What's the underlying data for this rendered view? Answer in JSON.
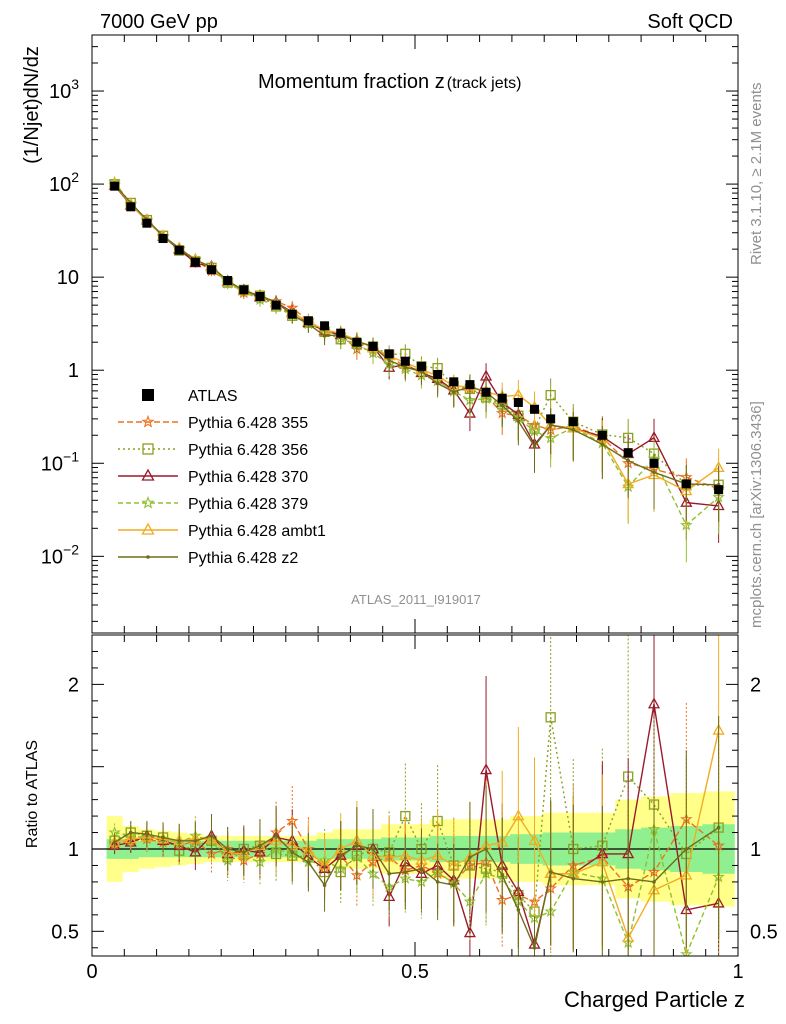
{
  "header": {
    "left": "7000 GeV pp",
    "right": "Soft QCD"
  },
  "side_labels": {
    "upper": "Rivet 3.1.10, ≥ 2.1M events",
    "lower": "mcplots.cern.ch [arXiv:1306.3436]"
  },
  "chart_data": {
    "type": "line",
    "title_main": "Momentum fraction z",
    "title_sub": "(track jets)",
    "analysis_id": "ATLAS_2011_I919017",
    "ylabel_main": "(1/Njet)dN/dz",
    "ylabel_ratio": "Ratio to ATLAS",
    "xlabel": "Charged Particle z",
    "x_range": [
      0,
      1
    ],
    "y_main_range": [
      0.0015,
      4000
    ],
    "y_main_scale": "log",
    "y_ratio_range": [
      0.35,
      2.3
    ],
    "x_ticks": [
      "0",
      "0.5",
      "1"
    ],
    "y_main_ticks": [
      {
        "value": 1000,
        "base": "10",
        "exp": "3"
      },
      {
        "value": 100,
        "base": "10",
        "exp": "2"
      },
      {
        "value": 10,
        "base": "10",
        "exp": ""
      },
      {
        "value": 1,
        "base": "1",
        "exp": ""
      },
      {
        "value": 0.1,
        "base": "10",
        "exp": "−1"
      },
      {
        "value": 0.01,
        "base": "10",
        "exp": "−2"
      }
    ],
    "y_ratio_ticks": [
      "0.5",
      "1",
      "2"
    ],
    "legend_position": "left-middle",
    "x": [
      0.035,
      0.06,
      0.085,
      0.11,
      0.135,
      0.16,
      0.185,
      0.21,
      0.235,
      0.26,
      0.285,
      0.31,
      0.335,
      0.36,
      0.385,
      0.41,
      0.435,
      0.46,
      0.485,
      0.51,
      0.535,
      0.56,
      0.585,
      0.61,
      0.635,
      0.66,
      0.685,
      0.71,
      0.745,
      0.79,
      0.83,
      0.87,
      0.92,
      0.97
    ],
    "data": {
      "name": "ATLAS",
      "color": "#000000",
      "values": [
        95,
        57,
        38,
        26,
        19.5,
        14.5,
        12,
        9.2,
        7.3,
        6.2,
        5.0,
        4.0,
        3.4,
        3.0,
        2.5,
        2.0,
        1.8,
        1.5,
        1.25,
        1.1,
        0.9,
        0.75,
        0.7,
        0.58,
        0.5,
        0.45,
        0.38,
        0.3,
        0.28,
        0.2,
        0.13,
        0.1,
        0.06,
        0.052
      ],
      "band_inner": [
        0.06,
        0.06,
        0.05,
        0.05,
        0.05,
        0.05,
        0.05,
        0.05,
        0.05,
        0.05,
        0.05,
        0.05,
        0.05,
        0.06,
        0.06,
        0.06,
        0.06,
        0.07,
        0.07,
        0.07,
        0.08,
        0.08,
        0.08,
        0.08,
        0.08,
        0.09,
        0.09,
        0.1,
        0.1,
        0.1,
        0.12,
        0.13,
        0.14,
        0.15
      ],
      "band_outer": [
        0.2,
        0.14,
        0.12,
        0.11,
        0.1,
        0.09,
        0.08,
        0.08,
        0.08,
        0.08,
        0.08,
        0.08,
        0.08,
        0.1,
        0.12,
        0.12,
        0.12,
        0.15,
        0.15,
        0.15,
        0.18,
        0.18,
        0.18,
        0.18,
        0.18,
        0.2,
        0.2,
        0.22,
        0.22,
        0.22,
        0.3,
        0.32,
        0.34,
        0.35
      ]
    },
    "series": [
      {
        "name": "Pythia 6.428 355",
        "color": "#ee7020",
        "dash": "6,3",
        "marker": "star",
        "ratio": [
          1.03,
          1.05,
          1.06,
          1.04,
          1.02,
          1.05,
          0.97,
          1.0,
          0.93,
          0.97,
          1.1,
          1.17,
          1.0,
          0.88,
          0.96,
          0.84,
          0.92,
          0.95,
          0.87,
          0.9,
          0.85,
          0.8,
          0.9,
          0.92,
          0.69,
          0.72,
          0.68,
          0.76,
          0.9,
          0.95,
          0.77,
          0.86,
          1.18,
          1.02
        ]
      },
      {
        "name": "Pythia 6.428 356",
        "color": "#8aa020",
        "dash": "2,3",
        "marker": "square",
        "ratio": [
          1.05,
          1.1,
          1.08,
          1.07,
          0.99,
          1.02,
          1.05,
          0.95,
          1.0,
          1.02,
          0.97,
          0.96,
          0.95,
          0.86,
          0.86,
          0.96,
          1.0,
          0.98,
          1.2,
          1.0,
          1.17,
          0.9,
          0.9,
          0.88,
          0.86,
          0.72,
          0.62,
          1.8,
          1.0,
          1.02,
          1.44,
          1.27,
          0.97,
          1.13
        ]
      },
      {
        "name": "Pythia 6.428 370",
        "color": "#9a1a2a",
        "dash": "",
        "marker": "triangle",
        "ratio": [
          1.02,
          1.04,
          1.08,
          1.05,
          1.02,
          0.98,
          1.08,
          0.97,
          0.99,
          0.98,
          1.07,
          1.05,
          0.95,
          0.88,
          0.96,
          1.02,
          1.0,
          0.71,
          0.92,
          0.85,
          0.9,
          0.81,
          0.49,
          1.48,
          0.9,
          0.74,
          0.42,
          0.85,
          0.85,
          0.97,
          0.97,
          1.88,
          0.63,
          0.67
        ]
      },
      {
        "name": "Pythia 6.428 379",
        "color": "#90c030",
        "dash": "5,3",
        "marker": "star",
        "ratio": [
          1.1,
          1.08,
          1.07,
          1.06,
          1.04,
          1.08,
          1.05,
          0.93,
          0.96,
          0.92,
          1.0,
          0.97,
          0.92,
          0.93,
          0.88,
          0.95,
          0.85,
          0.77,
          0.82,
          0.8,
          0.86,
          0.79,
          0.68,
          0.85,
          0.82,
          0.68,
          0.58,
          0.62,
          0.86,
          0.82,
          0.43,
          1.12,
          0.36,
          0.83
        ]
      },
      {
        "name": "Pythia 6.428 ambt1",
        "color": "#f2ac22",
        "dash": "",
        "marker": "triangle",
        "ratio": [
          1.04,
          1.06,
          1.07,
          1.06,
          1.05,
          1.06,
          1.06,
          0.98,
          0.97,
          1.02,
          1.05,
          1.02,
          0.99,
          0.9,
          1.0,
          1.05,
          0.96,
          0.95,
          0.96,
          0.93,
          0.96,
          0.9,
          0.95,
          1.02,
          1.04,
          1.2,
          1.05,
          0.85,
          0.85,
          0.92,
          0.46,
          0.75,
          0.84,
          1.72
        ]
      },
      {
        "name": "Pythia 6.428 z2",
        "color": "#6e6e1a",
        "dash": "",
        "marker": "dot",
        "ratio": [
          1.04,
          1.1,
          1.09,
          1.07,
          1.05,
          1.05,
          1.08,
          1.0,
          0.98,
          1.02,
          1.08,
          0.98,
          0.92,
          0.78,
          0.96,
          1.02,
          1.0,
          0.85,
          0.86,
          0.88,
          0.8,
          0.78,
          0.95,
          1.0,
          0.84,
          0.63,
          0.4,
          0.86,
          0.82,
          0.8,
          0.82,
          0.8,
          1.0,
          1.13
        ]
      }
    ]
  }
}
